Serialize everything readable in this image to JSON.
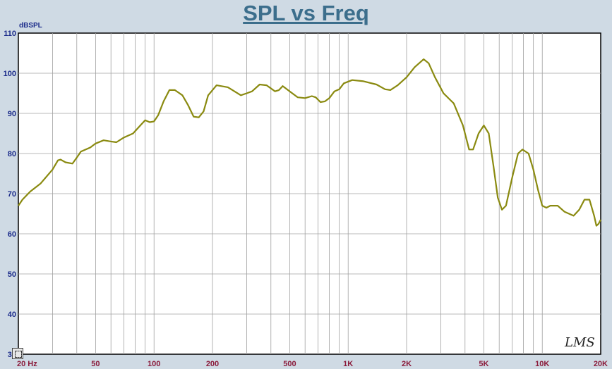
{
  "title": "SPL vs Freq",
  "watermark": "LMS",
  "chart_data": {
    "type": "line",
    "title": "SPL vs Freq",
    "xlabel": "",
    "ylabel": "dBSPL",
    "x_scale": "log",
    "xlim": [
      20,
      20000
    ],
    "ylim": [
      30,
      110
    ],
    "grid": true,
    "y_ticks": [
      30,
      40,
      50,
      60,
      70,
      80,
      90,
      100,
      110
    ],
    "x_ticks": [
      {
        "value": 20,
        "label": "20 Hz"
      },
      {
        "value": 50,
        "label": "50"
      },
      {
        "value": 100,
        "label": "100"
      },
      {
        "value": 200,
        "label": "200"
      },
      {
        "value": 500,
        "label": "500"
      },
      {
        "value": 1000,
        "label": "1K"
      },
      {
        "value": 2000,
        "label": "2K"
      },
      {
        "value": 5000,
        "label": "5K"
      },
      {
        "value": 10000,
        "label": "10K"
      },
      {
        "value": 20000,
        "label": "20K"
      }
    ],
    "series": [
      {
        "color": "#8a8a10",
        "points": [
          [
            20,
            67
          ],
          [
            21,
            68.5
          ],
          [
            23,
            70.5
          ],
          [
            26,
            72.5
          ],
          [
            30,
            76
          ],
          [
            32,
            78.3
          ],
          [
            33,
            78.5
          ],
          [
            35,
            77.8
          ],
          [
            38,
            77.5
          ],
          [
            40,
            79
          ],
          [
            42,
            80.5
          ],
          [
            47,
            81.5
          ],
          [
            50,
            82.5
          ],
          [
            55,
            83.3
          ],
          [
            60,
            83
          ],
          [
            64,
            82.8
          ],
          [
            70,
            84
          ],
          [
            78,
            85
          ],
          [
            85,
            87
          ],
          [
            90,
            88.3
          ],
          [
            95,
            87.8
          ],
          [
            100,
            88
          ],
          [
            105,
            89.5
          ],
          [
            112,
            93
          ],
          [
            120,
            95.8
          ],
          [
            128,
            95.8
          ],
          [
            140,
            94.5
          ],
          [
            150,
            92
          ],
          [
            160,
            89.2
          ],
          [
            170,
            89
          ],
          [
            180,
            90.5
          ],
          [
            190,
            94.5
          ],
          [
            210,
            97
          ],
          [
            240,
            96.5
          ],
          [
            280,
            94.5
          ],
          [
            300,
            95
          ],
          [
            320,
            95.5
          ],
          [
            350,
            97.2
          ],
          [
            380,
            97
          ],
          [
            420,
            95.5
          ],
          [
            440,
            95.8
          ],
          [
            460,
            96.8
          ],
          [
            500,
            95.5
          ],
          [
            550,
            94
          ],
          [
            600,
            93.8
          ],
          [
            650,
            94.3
          ],
          [
            680,
            94
          ],
          [
            720,
            92.8
          ],
          [
            760,
            93
          ],
          [
            800,
            93.8
          ],
          [
            850,
            95.5
          ],
          [
            900,
            96
          ],
          [
            950,
            97.5
          ],
          [
            1050,
            98.3
          ],
          [
            1200,
            98
          ],
          [
            1400,
            97.2
          ],
          [
            1550,
            96
          ],
          [
            1650,
            95.8
          ],
          [
            1800,
            97
          ],
          [
            2000,
            99
          ],
          [
            2200,
            101.5
          ],
          [
            2450,
            103.5
          ],
          [
            2600,
            102.5
          ],
          [
            2800,
            99
          ],
          [
            3100,
            95
          ],
          [
            3500,
            92.5
          ],
          [
            3900,
            87
          ],
          [
            4200,
            81
          ],
          [
            4400,
            81
          ],
          [
            4700,
            85
          ],
          [
            5000,
            87
          ],
          [
            5300,
            85
          ],
          [
            5600,
            77
          ],
          [
            5900,
            69
          ],
          [
            6200,
            66
          ],
          [
            6500,
            67
          ],
          [
            7000,
            74
          ],
          [
            7500,
            80
          ],
          [
            7900,
            81
          ],
          [
            8500,
            80
          ],
          [
            9000,
            76
          ],
          [
            9500,
            71
          ],
          [
            10000,
            67
          ],
          [
            10500,
            66.5
          ],
          [
            11000,
            67
          ],
          [
            12000,
            67
          ],
          [
            13000,
            65.5
          ],
          [
            14500,
            64.5
          ],
          [
            15500,
            66
          ],
          [
            16500,
            68.5
          ],
          [
            17500,
            68.5
          ],
          [
            18500,
            64.5
          ],
          [
            19000,
            62
          ],
          [
            19500,
            62.5
          ],
          [
            20000,
            63.5
          ]
        ]
      }
    ]
  }
}
